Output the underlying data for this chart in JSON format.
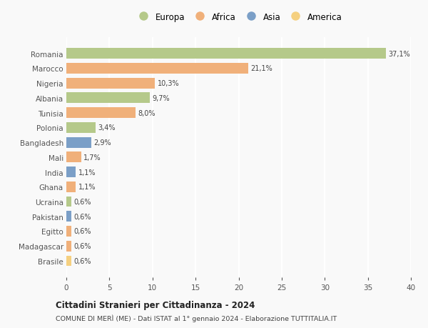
{
  "countries": [
    "Romania",
    "Marocco",
    "Nigeria",
    "Albania",
    "Tunisia",
    "Polonia",
    "Bangladesh",
    "Mali",
    "India",
    "Ghana",
    "Ucraina",
    "Pakistan",
    "Egitto",
    "Madagascar",
    "Brasile"
  ],
  "values": [
    37.1,
    21.1,
    10.3,
    9.7,
    8.0,
    3.4,
    2.9,
    1.7,
    1.1,
    1.1,
    0.6,
    0.6,
    0.6,
    0.6,
    0.6
  ],
  "labels": [
    "37,1%",
    "21,1%",
    "10,3%",
    "9,7%",
    "8,0%",
    "3,4%",
    "2,9%",
    "1,7%",
    "1,1%",
    "1,1%",
    "0,6%",
    "0,6%",
    "0,6%",
    "0,6%",
    "0,6%"
  ],
  "colors": [
    "#b5c98a",
    "#f0b07a",
    "#f0b07a",
    "#b5c98a",
    "#f0b07a",
    "#b5c98a",
    "#7b9fc7",
    "#f0b07a",
    "#7b9fc7",
    "#f0b07a",
    "#b5c98a",
    "#7b9fc7",
    "#f0b07a",
    "#f0b07a",
    "#f5d080"
  ],
  "legend_labels": [
    "Europa",
    "Africa",
    "Asia",
    "America"
  ],
  "legend_colors": [
    "#b5c98a",
    "#f0b07a",
    "#7b9fc7",
    "#f5d080"
  ],
  "title": "Cittadini Stranieri per Cittadinanza - 2024",
  "subtitle": "COMUNE DI MERÌ (ME) - Dati ISTAT al 1° gennaio 2024 - Elaborazione TUTTITALIA.IT",
  "xlim": [
    0,
    40
  ],
  "xticks": [
    0,
    5,
    10,
    15,
    20,
    25,
    30,
    35,
    40
  ],
  "background_color": "#f9f9f9",
  "grid_color": "#ffffff",
  "bar_height": 0.72
}
